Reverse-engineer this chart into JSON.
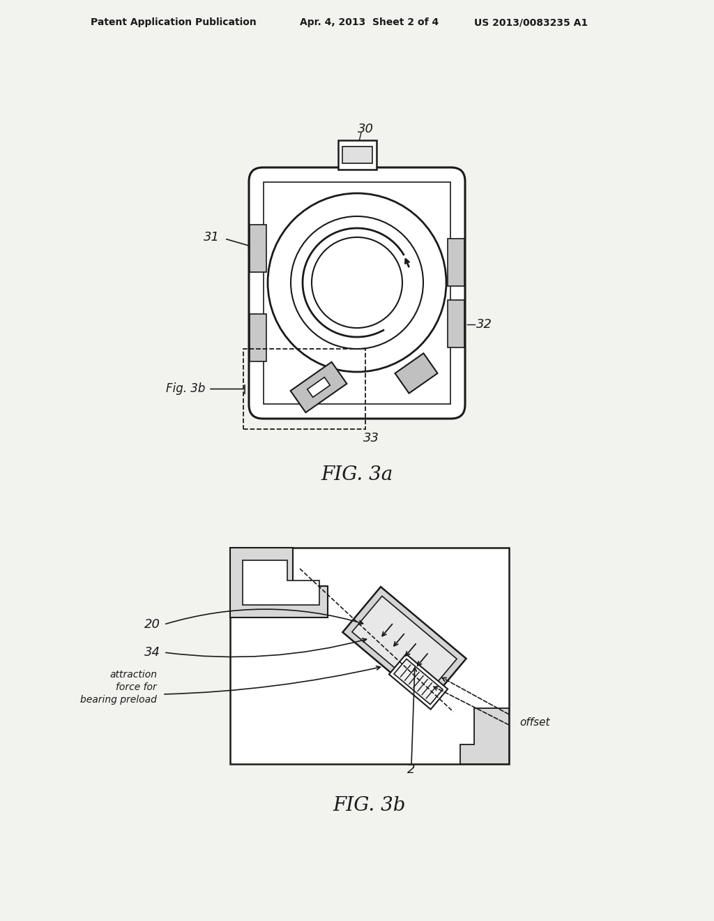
{
  "bg_color": "#f2f2ee",
  "line_color": "#1a1a1a",
  "header_left": "Patent Application Publication",
  "header_mid": "Apr. 4, 2013  Sheet 2 of 4",
  "header_right": "US 2013/0083235 A1",
  "fig3a_label": "FIG. 3a",
  "fig3b_label": "FIG. 3b",
  "label_30": "30",
  "label_31": "31",
  "label_32": "32",
  "label_33": "33",
  "label_fig3b_ref": "Fig. 3b",
  "label_20": "20",
  "label_34": "34",
  "label_2": "2",
  "label_attraction_line1": "attraction",
  "label_attraction_line2": "force for",
  "label_attraction_line3": "bearing preload",
  "label_offset": "offset"
}
